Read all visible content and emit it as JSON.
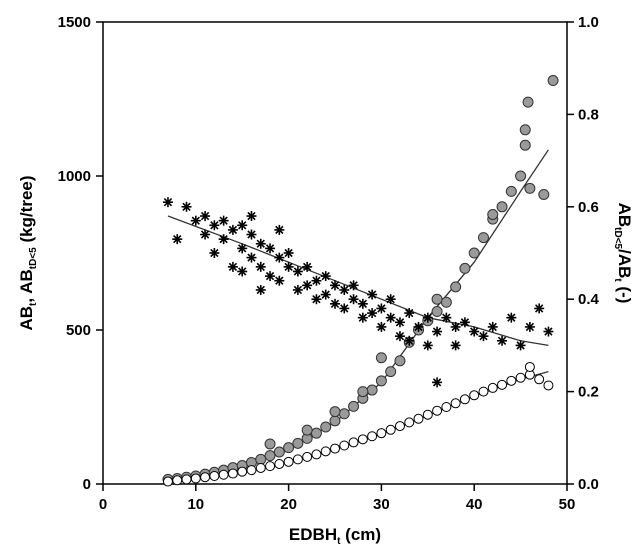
{
  "chart_data": {
    "type": "scatter",
    "title": "",
    "xlabel": {
      "base": "EDBH",
      "sub": "t",
      "rest": " (cm)"
    },
    "ylabel_left": {
      "p1": "AB",
      "s1": "t",
      "p2": ", AB",
      "s2": "tD<5",
      "p3": " (kg/tree)"
    },
    "ylabel_right": {
      "p1": "AB",
      "s1": "tD<5",
      "p2": "/AB",
      "s2": "t",
      "p3": " (-)"
    },
    "xlim": [
      0,
      50
    ],
    "ylim_left": [
      0,
      1500
    ],
    "ylim_right": [
      0,
      1.0
    ],
    "x_ticks": [
      0,
      10,
      20,
      30,
      40,
      50
    ],
    "y_left_ticks": [
      0,
      500,
      1000,
      1500
    ],
    "y_right_ticks": [
      "0.0",
      "0.2",
      "0.4",
      "0.6",
      "0.8",
      "1.0"
    ],
    "grid": false,
    "series": [
      {
        "axis": "left",
        "marker": "circle-filled-gray",
        "color": "#9a9a9a",
        "points": [
          [
            7,
            15
          ],
          [
            8,
            18
          ],
          [
            9,
            22
          ],
          [
            10,
            26
          ],
          [
            11,
            32
          ],
          [
            12,
            38
          ],
          [
            13,
            45
          ],
          [
            14,
            53
          ],
          [
            15,
            60
          ],
          [
            16,
            70
          ],
          [
            17,
            80
          ],
          [
            18,
            92
          ],
          [
            19,
            104
          ],
          [
            20,
            118
          ],
          [
            21,
            132
          ],
          [
            22,
            148
          ],
          [
            23,
            165
          ],
          [
            24,
            185
          ],
          [
            25,
            205
          ],
          [
            26,
            228
          ],
          [
            27,
            252
          ],
          [
            28,
            278
          ],
          [
            29,
            305
          ],
          [
            30,
            335
          ],
          [
            31,
            365
          ],
          [
            32,
            400
          ],
          [
            33,
            460
          ],
          [
            34,
            500
          ],
          [
            35,
            530
          ],
          [
            36,
            560
          ],
          [
            37,
            590
          ],
          [
            38,
            640
          ],
          [
            39,
            700
          ],
          [
            40,
            750
          ],
          [
            41,
            800
          ],
          [
            42,
            860
          ],
          [
            43,
            900
          ],
          [
            44,
            950
          ],
          [
            45,
            1000
          ],
          [
            45.5,
            1100
          ],
          [
            45.5,
            1150
          ],
          [
            45.8,
            1240
          ],
          [
            46,
            960
          ],
          [
            47.5,
            940
          ],
          [
            48.5,
            1310
          ],
          [
            18,
            130
          ],
          [
            22,
            175
          ],
          [
            25,
            235
          ],
          [
            28,
            300
          ],
          [
            30,
            410
          ],
          [
            36,
            600
          ],
          [
            42,
            875
          ]
        ]
      },
      {
        "axis": "left",
        "marker": "circle-open",
        "color": "#000000",
        "points": [
          [
            7,
            8
          ],
          [
            8,
            12
          ],
          [
            9,
            15
          ],
          [
            10,
            18
          ],
          [
            11,
            22
          ],
          [
            12,
            26
          ],
          [
            13,
            30
          ],
          [
            14,
            34
          ],
          [
            15,
            40
          ],
          [
            16,
            45
          ],
          [
            17,
            52
          ],
          [
            18,
            58
          ],
          [
            19,
            65
          ],
          [
            20,
            72
          ],
          [
            21,
            80
          ],
          [
            22,
            88
          ],
          [
            23,
            96
          ],
          [
            24,
            106
          ],
          [
            25,
            115
          ],
          [
            26,
            125
          ],
          [
            27,
            135
          ],
          [
            28,
            145
          ],
          [
            29,
            155
          ],
          [
            30,
            165
          ],
          [
            31,
            176
          ],
          [
            32,
            188
          ],
          [
            33,
            200
          ],
          [
            34,
            212
          ],
          [
            35,
            225
          ],
          [
            36,
            238
          ],
          [
            37,
            250
          ],
          [
            38,
            262
          ],
          [
            39,
            275
          ],
          [
            40,
            288
          ],
          [
            41,
            300
          ],
          [
            42,
            312
          ],
          [
            43,
            322
          ],
          [
            44,
            335
          ],
          [
            45,
            345
          ],
          [
            46,
            355
          ],
          [
            47,
            340
          ],
          [
            48,
            320
          ],
          [
            46,
            380
          ]
        ]
      },
      {
        "axis": "right",
        "marker": "asterisk",
        "color": "#000000",
        "points": [
          [
            7,
            0.61
          ],
          [
            8,
            0.53
          ],
          [
            9,
            0.6
          ],
          [
            10,
            0.57
          ],
          [
            11,
            0.54
          ],
          [
            11,
            0.58
          ],
          [
            12,
            0.56
          ],
          [
            12,
            0.5
          ],
          [
            13,
            0.53
          ],
          [
            13,
            0.57
          ],
          [
            14,
            0.55
          ],
          [
            14,
            0.47
          ],
          [
            15,
            0.56
          ],
          [
            15,
            0.51
          ],
          [
            15,
            0.46
          ],
          [
            16,
            0.54
          ],
          [
            16,
            0.49
          ],
          [
            17,
            0.52
          ],
          [
            17,
            0.47
          ],
          [
            17,
            0.42
          ],
          [
            18,
            0.51
          ],
          [
            18,
            0.45
          ],
          [
            19,
            0.49
          ],
          [
            19,
            0.44
          ],
          [
            20,
            0.5
          ],
          [
            20,
            0.47
          ],
          [
            21,
            0.46
          ],
          [
            21,
            0.42
          ],
          [
            22,
            0.47
          ],
          [
            22,
            0.43
          ],
          [
            23,
            0.44
          ],
          [
            23,
            0.4
          ],
          [
            24,
            0.45
          ],
          [
            24,
            0.41
          ],
          [
            25,
            0.43
          ],
          [
            25,
            0.39
          ],
          [
            26,
            0.42
          ],
          [
            26,
            0.38
          ],
          [
            27,
            0.4
          ],
          [
            27,
            0.43
          ],
          [
            28,
            0.39
          ],
          [
            28,
            0.36
          ],
          [
            29,
            0.41
          ],
          [
            29,
            0.37
          ],
          [
            30,
            0.38
          ],
          [
            30,
            0.34
          ],
          [
            31,
            0.36
          ],
          [
            31,
            0.4
          ],
          [
            32,
            0.35
          ],
          [
            32,
            0.32
          ],
          [
            33,
            0.37
          ],
          [
            33,
            0.31
          ],
          [
            34,
            0.34
          ],
          [
            35,
            0.36
          ],
          [
            35,
            0.3
          ],
          [
            36,
            0.33
          ],
          [
            37,
            0.36
          ],
          [
            38,
            0.34
          ],
          [
            38,
            0.3
          ],
          [
            39,
            0.35
          ],
          [
            40,
            0.33
          ],
          [
            41,
            0.32
          ],
          [
            42,
            0.34
          ],
          [
            43,
            0.31
          ],
          [
            44,
            0.36
          ],
          [
            45,
            0.3
          ],
          [
            46,
            0.34
          ],
          [
            47,
            0.38
          ],
          [
            48,
            0.33
          ],
          [
            36,
            0.22
          ],
          [
            16,
            0.58
          ],
          [
            19,
            0.55
          ]
        ]
      }
    ],
    "fit_lines": [
      {
        "axis": "left",
        "points": [
          [
            7,
            10
          ],
          [
            10,
            25
          ],
          [
            15,
            58
          ],
          [
            20,
            110
          ],
          [
            25,
            200
          ],
          [
            30,
            330
          ],
          [
            35,
            540
          ],
          [
            40,
            720
          ],
          [
            45,
            950
          ],
          [
            48,
            1085
          ]
        ]
      },
      {
        "axis": "left",
        "points": [
          [
            7,
            6
          ],
          [
            15,
            38
          ],
          [
            20,
            70
          ],
          [
            25,
            112
          ],
          [
            30,
            162
          ],
          [
            35,
            222
          ],
          [
            40,
            285
          ],
          [
            45,
            340
          ],
          [
            48,
            365
          ]
        ]
      },
      {
        "axis": "right",
        "points": [
          [
            7,
            0.58
          ],
          [
            15,
            0.52
          ],
          [
            20,
            0.48
          ],
          [
            25,
            0.44
          ],
          [
            30,
            0.4
          ],
          [
            35,
            0.36
          ],
          [
            40,
            0.34
          ],
          [
            45,
            0.31
          ],
          [
            48,
            0.3
          ]
        ]
      }
    ]
  }
}
